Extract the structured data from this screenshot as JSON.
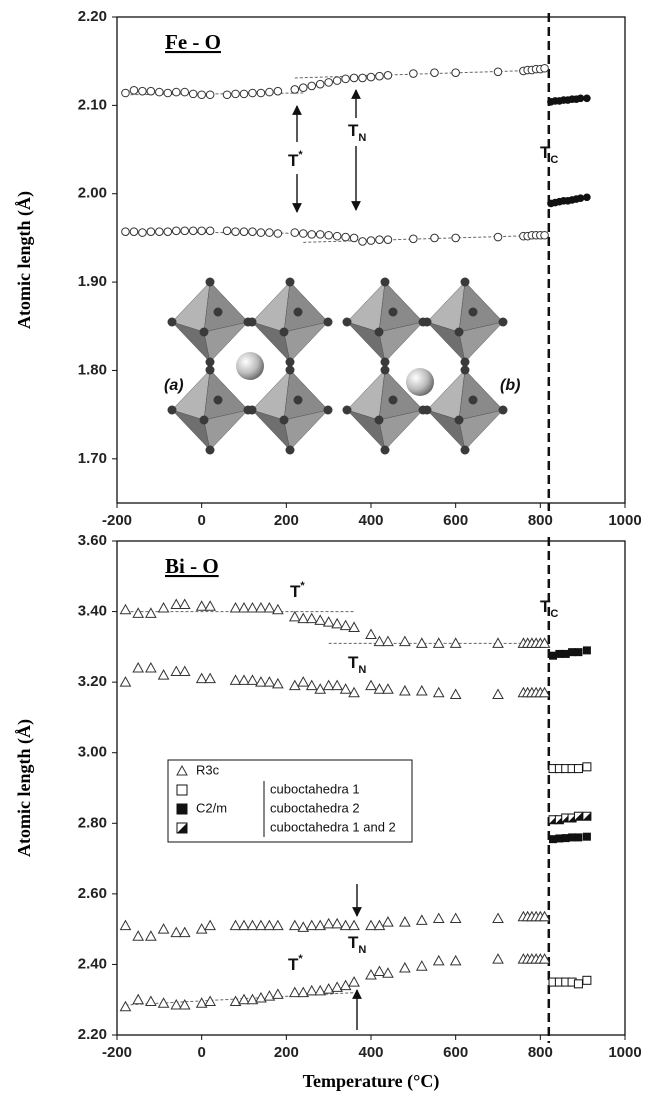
{
  "chart_data": [
    {
      "type": "scatter",
      "title": "Fe - O",
      "y_label": "Atomic length (Å)",
      "xlim": [
        -200,
        1000
      ],
      "xticks": [
        -200,
        0,
        200,
        400,
        600,
        800,
        1000
      ],
      "ylim": [
        1.65,
        2.2
      ],
      "yticks": [
        {
          "value": 1.7,
          "label": "1.70"
        },
        {
          "value": 1.8,
          "label": "1.80"
        },
        {
          "value": 1.9,
          "label": "1.90"
        },
        {
          "value": 2.0,
          "label": "2.00"
        },
        {
          "value": 2.1,
          "label": "2.10"
        },
        {
          "value": 2.2,
          "label": "2.20"
        }
      ],
      "tc_line_x": 820,
      "fit_lines": [
        {
          "x": [
            -180,
            240
          ],
          "y": [
            2.112,
            2.114
          ]
        },
        {
          "x": [
            220,
            810
          ],
          "y": [
            2.131,
            2.14
          ]
        },
        {
          "x": [
            -180,
            280
          ],
          "y": [
            1.957,
            1.955
          ]
        },
        {
          "x": [
            240,
            810
          ],
          "y": [
            1.945,
            1.953
          ]
        }
      ],
      "x": [
        -180,
        -160,
        -140,
        -120,
        -100,
        -80,
        -60,
        -40,
        -20,
        0,
        20,
        60,
        80,
        100,
        120,
        140,
        160,
        180,
        220,
        240,
        260,
        280,
        300,
        320,
        340,
        360,
        380,
        400,
        420,
        440,
        500,
        550,
        600,
        700,
        760,
        770,
        780,
        790,
        800,
        810
      ],
      "series": [
        {
          "marker": "circle-open",
          "values": [
            2.114,
            2.117,
            2.116,
            2.116,
            2.115,
            2.114,
            2.115,
            2.115,
            2.113,
            2.112,
            2.112,
            2.112,
            2.113,
            2.113,
            2.114,
            2.114,
            2.115,
            2.116,
            2.118,
            2.12,
            2.122,
            2.124,
            2.126,
            2.128,
            2.13,
            2.131,
            2.131,
            2.132,
            2.133,
            2.134,
            2.136,
            2.137,
            2.137,
            2.138,
            2.139,
            2.14,
            2.14,
            2.141,
            2.141,
            2.142
          ]
        },
        {
          "marker": "circle-open",
          "values": [
            1.957,
            1.957,
            1.956,
            1.957,
            1.957,
            1.957,
            1.958,
            1.958,
            1.958,
            1.958,
            1.958,
            1.958,
            1.957,
            1.957,
            1.957,
            1.956,
            1.956,
            1.955,
            1.956,
            1.955,
            1.954,
            1.954,
            1.953,
            1.952,
            1.951,
            1.95,
            1.946,
            1.947,
            1.948,
            1.948,
            1.949,
            1.95,
            1.95,
            1.951,
            1.952,
            1.952,
            1.953,
            1.953,
            1.953,
            1.953
          ]
        },
        {
          "marker": "circle-filled",
          "x": [
            825,
            835,
            845,
            855,
            865,
            875,
            885,
            895,
            910
          ],
          "values": [
            2.104,
            2.105,
            2.105,
            2.106,
            2.106,
            2.107,
            2.107,
            2.108,
            2.108
          ]
        },
        {
          "marker": "circle-filled",
          "x": [
            825,
            835,
            845,
            855,
            865,
            875,
            885,
            895,
            910
          ],
          "values": [
            1.989,
            1.99,
            1.991,
            1.992,
            1.992,
            1.993,
            1.994,
            1.995,
            1.996
          ]
        }
      ],
      "annotations": [
        {
          "text": "T",
          "sup": "*"
        },
        {
          "text": "T",
          "sub": "N"
        },
        {
          "text": "T",
          "sub": "C"
        },
        {
          "text": "(a)"
        },
        {
          "text": "(b)"
        }
      ]
    },
    {
      "type": "scatter",
      "title": "Bi - O",
      "y_label": "Atomic length (Å)",
      "x_label": "Temperature (°C)",
      "xlim": [
        -200,
        1000
      ],
      "xticks": [
        -200,
        0,
        200,
        400,
        600,
        800,
        1000
      ],
      "ylim": [
        2.2,
        3.6
      ],
      "yticks": [
        {
          "value": 2.2,
          "label": "2.20"
        },
        {
          "value": 2.4,
          "label": "2.40"
        },
        {
          "value": 2.6,
          "label": "2.60"
        },
        {
          "value": 2.8,
          "label": "2.80"
        },
        {
          "value": 3.0,
          "label": "3.00"
        },
        {
          "value": 3.2,
          "label": "3.20"
        },
        {
          "value": 3.4,
          "label": "3.40"
        },
        {
          "value": 3.6,
          "label": "3.60"
        }
      ],
      "tc_line_x": 820,
      "fit_lines": [
        {
          "x": [
            -180,
            360
          ],
          "y": [
            3.4,
            3.4
          ]
        },
        {
          "x": [
            300,
            810
          ],
          "y": [
            3.31,
            3.31
          ]
        },
        {
          "x": [
            -180,
            360
          ],
          "y": [
            2.285,
            2.32
          ]
        }
      ],
      "x": [
        -180,
        -150,
        -120,
        -90,
        -60,
        -40,
        0,
        20,
        80,
        100,
        120,
        140,
        160,
        180,
        220,
        240,
        260,
        280,
        300,
        320,
        340,
        360,
        400,
        420,
        440,
        480,
        520,
        560,
        600,
        700,
        760,
        770,
        780,
        790,
        800,
        810
      ],
      "series": [
        {
          "marker": "triangle-open",
          "values": [
            3.405,
            3.395,
            3.395,
            3.41,
            3.42,
            3.42,
            3.415,
            3.415,
            3.41,
            3.41,
            3.41,
            3.41,
            3.41,
            3.405,
            3.385,
            3.38,
            3.38,
            3.375,
            3.37,
            3.365,
            3.36,
            3.355,
            3.335,
            3.315,
            3.315,
            3.315,
            3.31,
            3.31,
            3.31,
            3.31,
            3.31,
            3.31,
            3.31,
            3.31,
            3.31,
            3.31
          ]
        },
        {
          "marker": "triangle-open",
          "values": [
            3.2,
            3.24,
            3.24,
            3.22,
            3.23,
            3.23,
            3.21,
            3.21,
            3.205,
            3.205,
            3.205,
            3.2,
            3.2,
            3.195,
            3.19,
            3.2,
            3.19,
            3.18,
            3.19,
            3.19,
            3.18,
            3.17,
            3.19,
            3.18,
            3.18,
            3.175,
            3.175,
            3.17,
            3.165,
            3.165,
            3.17,
            3.17,
            3.17,
            3.17,
            3.17,
            3.17
          ]
        },
        {
          "marker": "triangle-open",
          "values": [
            2.51,
            2.48,
            2.48,
            2.5,
            2.49,
            2.49,
            2.5,
            2.51,
            2.51,
            2.51,
            2.51,
            2.51,
            2.51,
            2.51,
            2.51,
            2.505,
            2.51,
            2.51,
            2.515,
            2.515,
            2.51,
            2.51,
            2.51,
            2.51,
            2.52,
            2.52,
            2.525,
            2.53,
            2.53,
            2.53,
            2.535,
            2.535,
            2.535,
            2.535,
            2.535,
            2.535
          ]
        },
        {
          "marker": "triangle-open",
          "values": [
            2.28,
            2.3,
            2.295,
            2.29,
            2.285,
            2.285,
            2.29,
            2.295,
            2.295,
            2.3,
            2.3,
            2.305,
            2.31,
            2.315,
            2.32,
            2.32,
            2.325,
            2.325,
            2.33,
            2.335,
            2.34,
            2.35,
            2.37,
            2.38,
            2.375,
            2.39,
            2.395,
            2.41,
            2.41,
            2.415,
            2.415,
            2.415,
            2.415,
            2.415,
            2.415,
            2.415
          ]
        },
        {
          "marker": "square-open",
          "x": [
            830,
            845,
            860,
            875,
            890,
            910
          ],
          "values": [
            2.955,
            2.955,
            2.955,
            2.955,
            2.955,
            2.96
          ]
        },
        {
          "marker": "square-open",
          "x": [
            830,
            845,
            860,
            875,
            890,
            910
          ],
          "values": [
            2.35,
            2.35,
            2.35,
            2.35,
            2.345,
            2.355
          ]
        },
        {
          "marker": "square-filled",
          "x": [
            830,
            845,
            860,
            875,
            890,
            910
          ],
          "values": [
            3.275,
            3.28,
            3.28,
            3.285,
            3.285,
            3.29
          ]
        },
        {
          "marker": "square-filled",
          "x": [
            830,
            845,
            860,
            875,
            890,
            910
          ],
          "values": [
            2.755,
            2.757,
            2.758,
            2.76,
            2.76,
            2.762
          ]
        },
        {
          "marker": "square-half",
          "x": [
            830,
            845,
            860,
            875,
            890,
            910
          ],
          "values": [
            2.81,
            2.81,
            2.815,
            2.815,
            2.82,
            2.82
          ]
        }
      ],
      "legend": {
        "group_label": "C2/m",
        "entries": [
          "R3c",
          "cuboctahedra 1",
          "cuboctahedra 2",
          "cuboctahedra 1 and 2"
        ]
      },
      "annotations": [
        {
          "text": "T",
          "sup": "*"
        },
        {
          "text": "T",
          "sub": "C"
        },
        {
          "text": "T",
          "sub": "N"
        },
        {
          "text": "T",
          "sub": "N"
        },
        {
          "text": "T",
          "sup": "*"
        }
      ]
    }
  ]
}
